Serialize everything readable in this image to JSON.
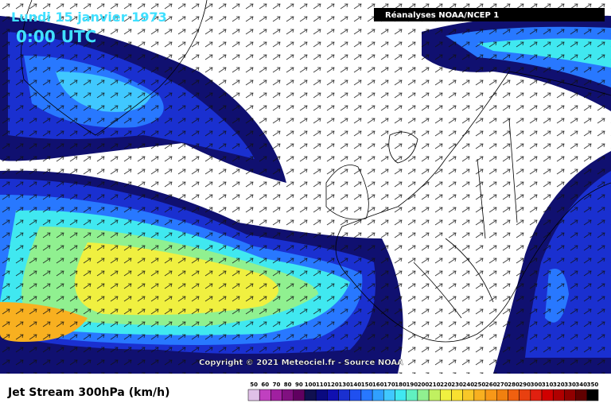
{
  "header": {
    "date": "Lundi 15 janvier 1973",
    "time": "0:00 UTC",
    "source_box": "Réanalyses NOAA/NCEP 1"
  },
  "copyright": "Copyright © 2021 Meteociel.fr - Source NOAA",
  "footer": {
    "title": "Jet Stream 300hPa (km/h)"
  },
  "legend": {
    "levels": [
      {
        "label": 50,
        "color": "#e0c0e8"
      },
      {
        "label": 60,
        "color": "#c040c0"
      },
      {
        "label": 70,
        "color": "#a020a0"
      },
      {
        "label": 80,
        "color": "#801080"
      },
      {
        "label": 90,
        "color": "#600060"
      },
      {
        "label": 100,
        "color": "#101050"
      },
      {
        "label": 110,
        "color": "#0a0a80"
      },
      {
        "label": 120,
        "color": "#1010b0"
      },
      {
        "label": 130,
        "color": "#1a30d0"
      },
      {
        "label": 140,
        "color": "#2050f0"
      },
      {
        "label": 150,
        "color": "#2878ff"
      },
      {
        "label": 160,
        "color": "#30a0ff"
      },
      {
        "label": 170,
        "color": "#40c8ff"
      },
      {
        "label": 180,
        "color": "#40e8f0"
      },
      {
        "label": 190,
        "color": "#60f0c0"
      },
      {
        "label": 200,
        "color": "#90f090"
      },
      {
        "label": 210,
        "color": "#c0f060"
      },
      {
        "label": 220,
        "color": "#f0f040"
      },
      {
        "label": 230,
        "color": "#f8e030"
      },
      {
        "label": 240,
        "color": "#f8c828"
      },
      {
        "label": 250,
        "color": "#f8b020"
      },
      {
        "label": 260,
        "color": "#f89818"
      },
      {
        "label": 270,
        "color": "#f08010"
      },
      {
        "label": 280,
        "color": "#f06010"
      },
      {
        "label": 290,
        "color": "#e84010"
      },
      {
        "label": 300,
        "color": "#e02010"
      },
      {
        "label": 310,
        "color": "#d00000"
      },
      {
        "label": 320,
        "color": "#b00000"
      },
      {
        "label": 330,
        "color": "#900000"
      },
      {
        "label": 340,
        "color": "#600000"
      },
      {
        "label": 350,
        "color": "#000000"
      }
    ]
  }
}
